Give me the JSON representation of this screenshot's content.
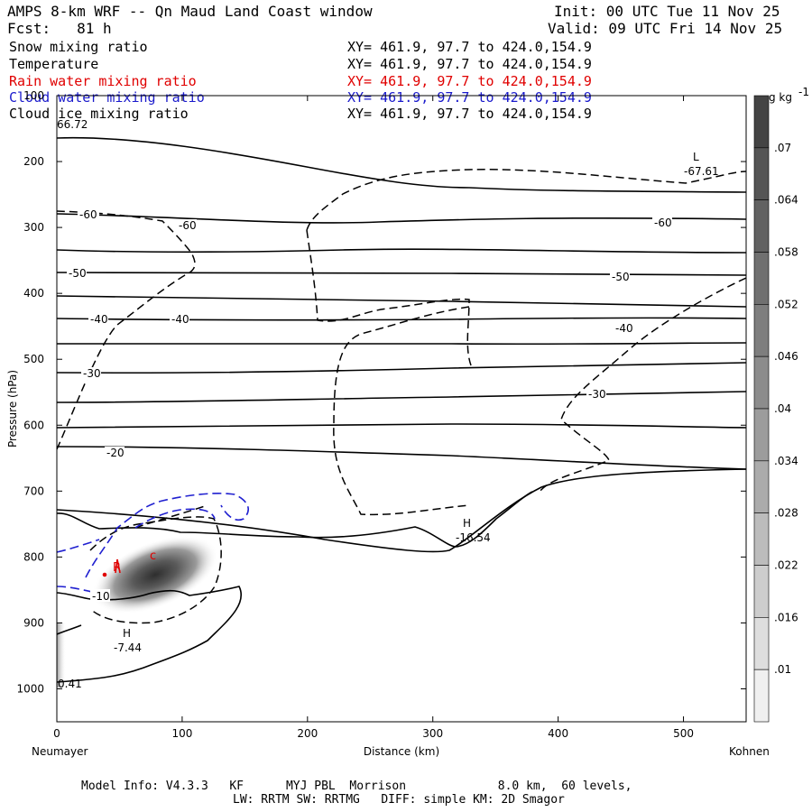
{
  "header": {
    "title": "AMPS 8-km WRF -- Qn Maud Land Coast window",
    "init": "Init: 00 UTC Tue 11 Nov 25",
    "fcst": "Fcst:   81 h",
    "valid": "Valid: 09 UTC Fri 14 Nov 25"
  },
  "fields": [
    {
      "name": "Snow mixing ratio",
      "xy": "XY= 461.9, 97.7 to 424.0,154.9",
      "color": "#000000"
    },
    {
      "name": "Temperature",
      "xy": "XY= 461.9, 97.7 to 424.0,154.9",
      "color": "#000000"
    },
    {
      "name": "Rain water mixing ratio",
      "xy": "XY= 461.9, 97.7 to 424.0,154.9",
      "color": "#e00000"
    },
    {
      "name": "Cloud water mixing ratio",
      "xy": "XY= 461.9, 97.7 to 424.0,154.9",
      "color": "#1a1acc"
    },
    {
      "name": "Cloud ice mixing ratio",
      "xy": "XY= 461.9, 97.7 to 424.0,154.9",
      "color": "#000000"
    }
  ],
  "chart_data": {
    "type": "cross-section",
    "xlabel": "Distance (km)",
    "ylabel": "Pressure (hPa)",
    "xlim": [
      0,
      550
    ],
    "ylim": [
      1050,
      100
    ],
    "x_ticks": [
      0,
      100,
      200,
      300,
      400,
      500
    ],
    "y_ticks": [
      100,
      200,
      300,
      400,
      500,
      600,
      700,
      800,
      900,
      1000
    ],
    "left_endpoint": "Neumayer",
    "right_endpoint": "Kohnen",
    "colorbar": {
      "unit": "g kg",
      "unit_exp": "-1",
      "levels": [
        ".07",
        ".064",
        ".058",
        ".052",
        ".046",
        ".04",
        ".034",
        ".028",
        ".022",
        ".016",
        ".01"
      ],
      "colors": [
        "#444444",
        "#555555",
        "#626262",
        "#707070",
        "#7e7e7e",
        "#8c8c8c",
        "#9c9c9c",
        "#ababab",
        "#bcbcbc",
        "#cdcdcd",
        "#dedede",
        "#f0f0f0"
      ]
    },
    "temperature_contour_labels": [
      "-60",
      "-60",
      "-60",
      "-50",
      "-50",
      "-40",
      "-40",
      "-40",
      "-30",
      "-30",
      "-20",
      "-10"
    ],
    "extrema": [
      {
        "type": "L",
        "value": "-67.61"
      },
      {
        "type": "H",
        "value": "-16.54"
      },
      {
        "type": "H",
        "value": "-7.44"
      }
    ],
    "corner_values": [
      "66.72",
      "0.41"
    ],
    "rain_labels": [
      "c",
      "R"
    ]
  },
  "footer": {
    "line1": "Model Info: V4.3.3   KF      MYJ PBL  Morrison             8.0 km,  60 levels,",
    "line2": "LW: RRTM SW: RRTMG   DIFF: simple KM: 2D Smagor"
  }
}
